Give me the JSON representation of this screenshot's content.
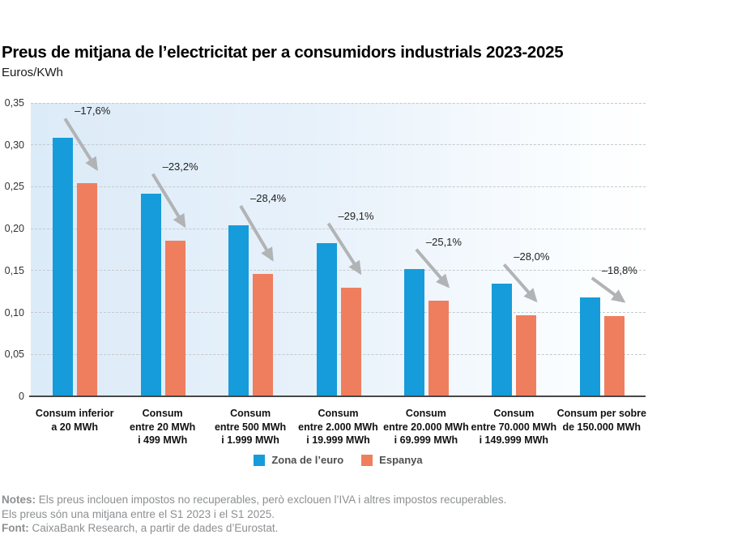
{
  "title": "Preus de mitjana de l’electricitat per a consumidors industrials 2023-2025",
  "subtitle": "Euros/KWh",
  "legend": {
    "series1": "Zona de l’euro",
    "series2": "Espanya"
  },
  "notes": {
    "notes_label": "Notes:",
    "line1": " Els preus inclouen impostos no recuperables, però exclouen l’IVA i altres impostos recuperables.",
    "line2": "Els preus són una mitjana entre el S1 2023 i el S1 2025.",
    "font_label": "Font:",
    "line3": " CaixaBank Research, a partir de dades d’Eurostat."
  },
  "colors": {
    "euro_blue": "#169cda",
    "espanya_orange": "#ef7e5e",
    "arrow_gray": "#b1b3b5",
    "plot_bg_left": "#dcebf8",
    "plot_bg_right": "#ffffff",
    "gridline": "#c5c9cd",
    "axis": "#47484a"
  },
  "chart_data": {
    "type": "bar",
    "title": "Preus de mitjana de l’electricitat per a consumidors industrials 2023-2025",
    "unit": "Euros/KWh",
    "categories": [
      [
        "Consum inferior",
        "a 20 MWh"
      ],
      [
        "Consum",
        "entre 20 MWh",
        "i 499 MWh"
      ],
      [
        "Consum",
        "entre 500 MWh",
        "i 1.999 MWh"
      ],
      [
        "Consum",
        "entre 2.000 MWh",
        "i 19.999 MWh"
      ],
      [
        "Consum",
        "entre 20.000 MWh",
        "i 69.999 MWh"
      ],
      [
        "Consum",
        "entre 70.000 MWh",
        "i 149.999 MWh"
      ],
      [
        "Consum per sobre",
        "de 150.000 MWh"
      ]
    ],
    "series": [
      {
        "name": "Zona de l’euro",
        "color": "#169cda",
        "values": [
          0.308,
          0.242,
          0.204,
          0.183,
          0.152,
          0.134,
          0.118
        ]
      },
      {
        "name": "Espanya",
        "color": "#ef7e5e",
        "values": [
          0.254,
          0.186,
          0.146,
          0.13,
          0.114,
          0.097,
          0.096
        ]
      }
    ],
    "pct_change_labels": [
      "–17,6%",
      "–23,2%",
      "–28,4%",
      "–29,1%",
      "–25,1%",
      "–28,0%",
      "–18,8%"
    ],
    "ylim": [
      0,
      0.35
    ],
    "yticks": [
      0,
      0.05,
      0.1,
      0.15,
      0.2,
      0.25,
      0.3,
      0.35
    ],
    "ytick_labels": [
      "0",
      "0,05",
      "0,10",
      "0,15",
      "0,20",
      "0,25",
      "0,30",
      "0,35"
    ],
    "grid": "horizontal-dashed",
    "legend_position": "bottom-center"
  }
}
